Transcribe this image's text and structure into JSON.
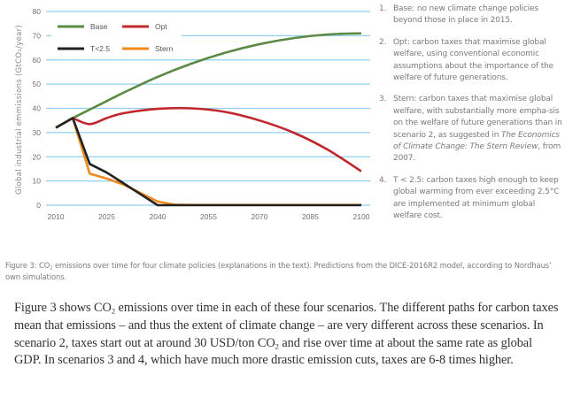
{
  "chart_data": {
    "type": "line",
    "title": "",
    "xlabel": "",
    "ylabel": "Global industrial emmissions (GtCO₂/year)",
    "xlim": [
      2010,
      2100
    ],
    "ylim": [
      0,
      80
    ],
    "grid": true,
    "legend_placement": "top-left",
    "xticks": [
      2010,
      2025,
      2040,
      2055,
      2070,
      2085,
      2100
    ],
    "yticks": [
      0,
      10,
      20,
      30,
      40,
      50,
      60,
      70,
      80
    ],
    "colors": {
      "Base": "#5b8a45",
      "Opt": "#c0282d",
      "T<2.5": "#222222",
      "Stern": "#f08a1c",
      "grid": "#8fd0ee"
    },
    "series": [
      {
        "name": "Base",
        "x": [
          2010,
          2015,
          2020,
          2025,
          2030,
          2040,
          2050,
          2060,
          2070,
          2080,
          2090,
          2100
        ],
        "values": [
          32,
          36,
          39.5,
          43,
          46.5,
          53,
          58.5,
          63,
          66.5,
          69,
          70.5,
          71
        ]
      },
      {
        "name": "Opt",
        "x": [
          2010,
          2015,
          2020,
          2025,
          2030,
          2040,
          2050,
          2060,
          2070,
          2080,
          2090,
          2100
        ],
        "values": [
          32,
          36,
          33.5,
          36,
          38,
          39.8,
          40,
          38.5,
          35,
          30,
          23,
          14
        ]
      },
      {
        "name": "T<2.5",
        "x": [
          2010,
          2015,
          2020,
          2025,
          2030,
          2035,
          2040,
          2050,
          2060,
          2070,
          2080,
          2090,
          2100
        ],
        "values": [
          32,
          36,
          17,
          13.5,
          9,
          4.5,
          0,
          0,
          0,
          0,
          0,
          0,
          0
        ]
      },
      {
        "name": "Stern",
        "x": [
          2010,
          2015,
          2020,
          2025,
          2030,
          2035,
          2040,
          2045,
          2050,
          2060,
          2070,
          2080,
          2090,
          2100
        ],
        "values": [
          32,
          36,
          13,
          11,
          8.5,
          5,
          1.5,
          0.2,
          0.1,
          0.1,
          0.1,
          0.1,
          0.1,
          0.1
        ]
      }
    ]
  },
  "legend": [
    "Base",
    "Opt",
    "T<2.5",
    "Stern"
  ],
  "notes": [
    {
      "num": "1.",
      "text": "Base: no new climate change policies beyond those in place in 2015."
    },
    {
      "num": "2.",
      "text": "Opt: carbon taxes that maximise global welfare, using conventional economic assumptions about the importance of the welfare of future generations."
    },
    {
      "num": "3.",
      "text_a": "Stern: carbon taxes that maximise global welfare, with substantially more empha-sis on the welfare of future generations than in scenario 2, as suggested in ",
      "italic": "The Economics of Climate Change: The Stern Review",
      "text_b": ", from 2007."
    },
    {
      "num": "4.",
      "text": "T < 2.5: carbon taxes high enough to keep global warming from ever exceeding 2.5°C are implemented at minimum global welfare cost."
    }
  ],
  "caption": {
    "a": "Figure 3: CO",
    "sub": "2",
    "b": " emissions over time for four climate policies (explanations in the text). Predictions from the DICE-2016R2 model, according to Nordhaus’ own simulations."
  },
  "body": {
    "p1": "Figure 3 shows CO",
    "sub1": "2",
    "p2": " emissions over time in each of these four scenarios. The different paths for carbon taxes mean that emissions – and thus the extent of climate change – are very different across these scenarios. In scenario 2, taxes start out at around 30 USD/ton CO",
    "sub2": "2",
    "p3": " and rise over time at about the same rate as global GDP. In scenarios 3 and 4, which have much more drastic emission cuts, taxes are 6-8 times higher."
  }
}
